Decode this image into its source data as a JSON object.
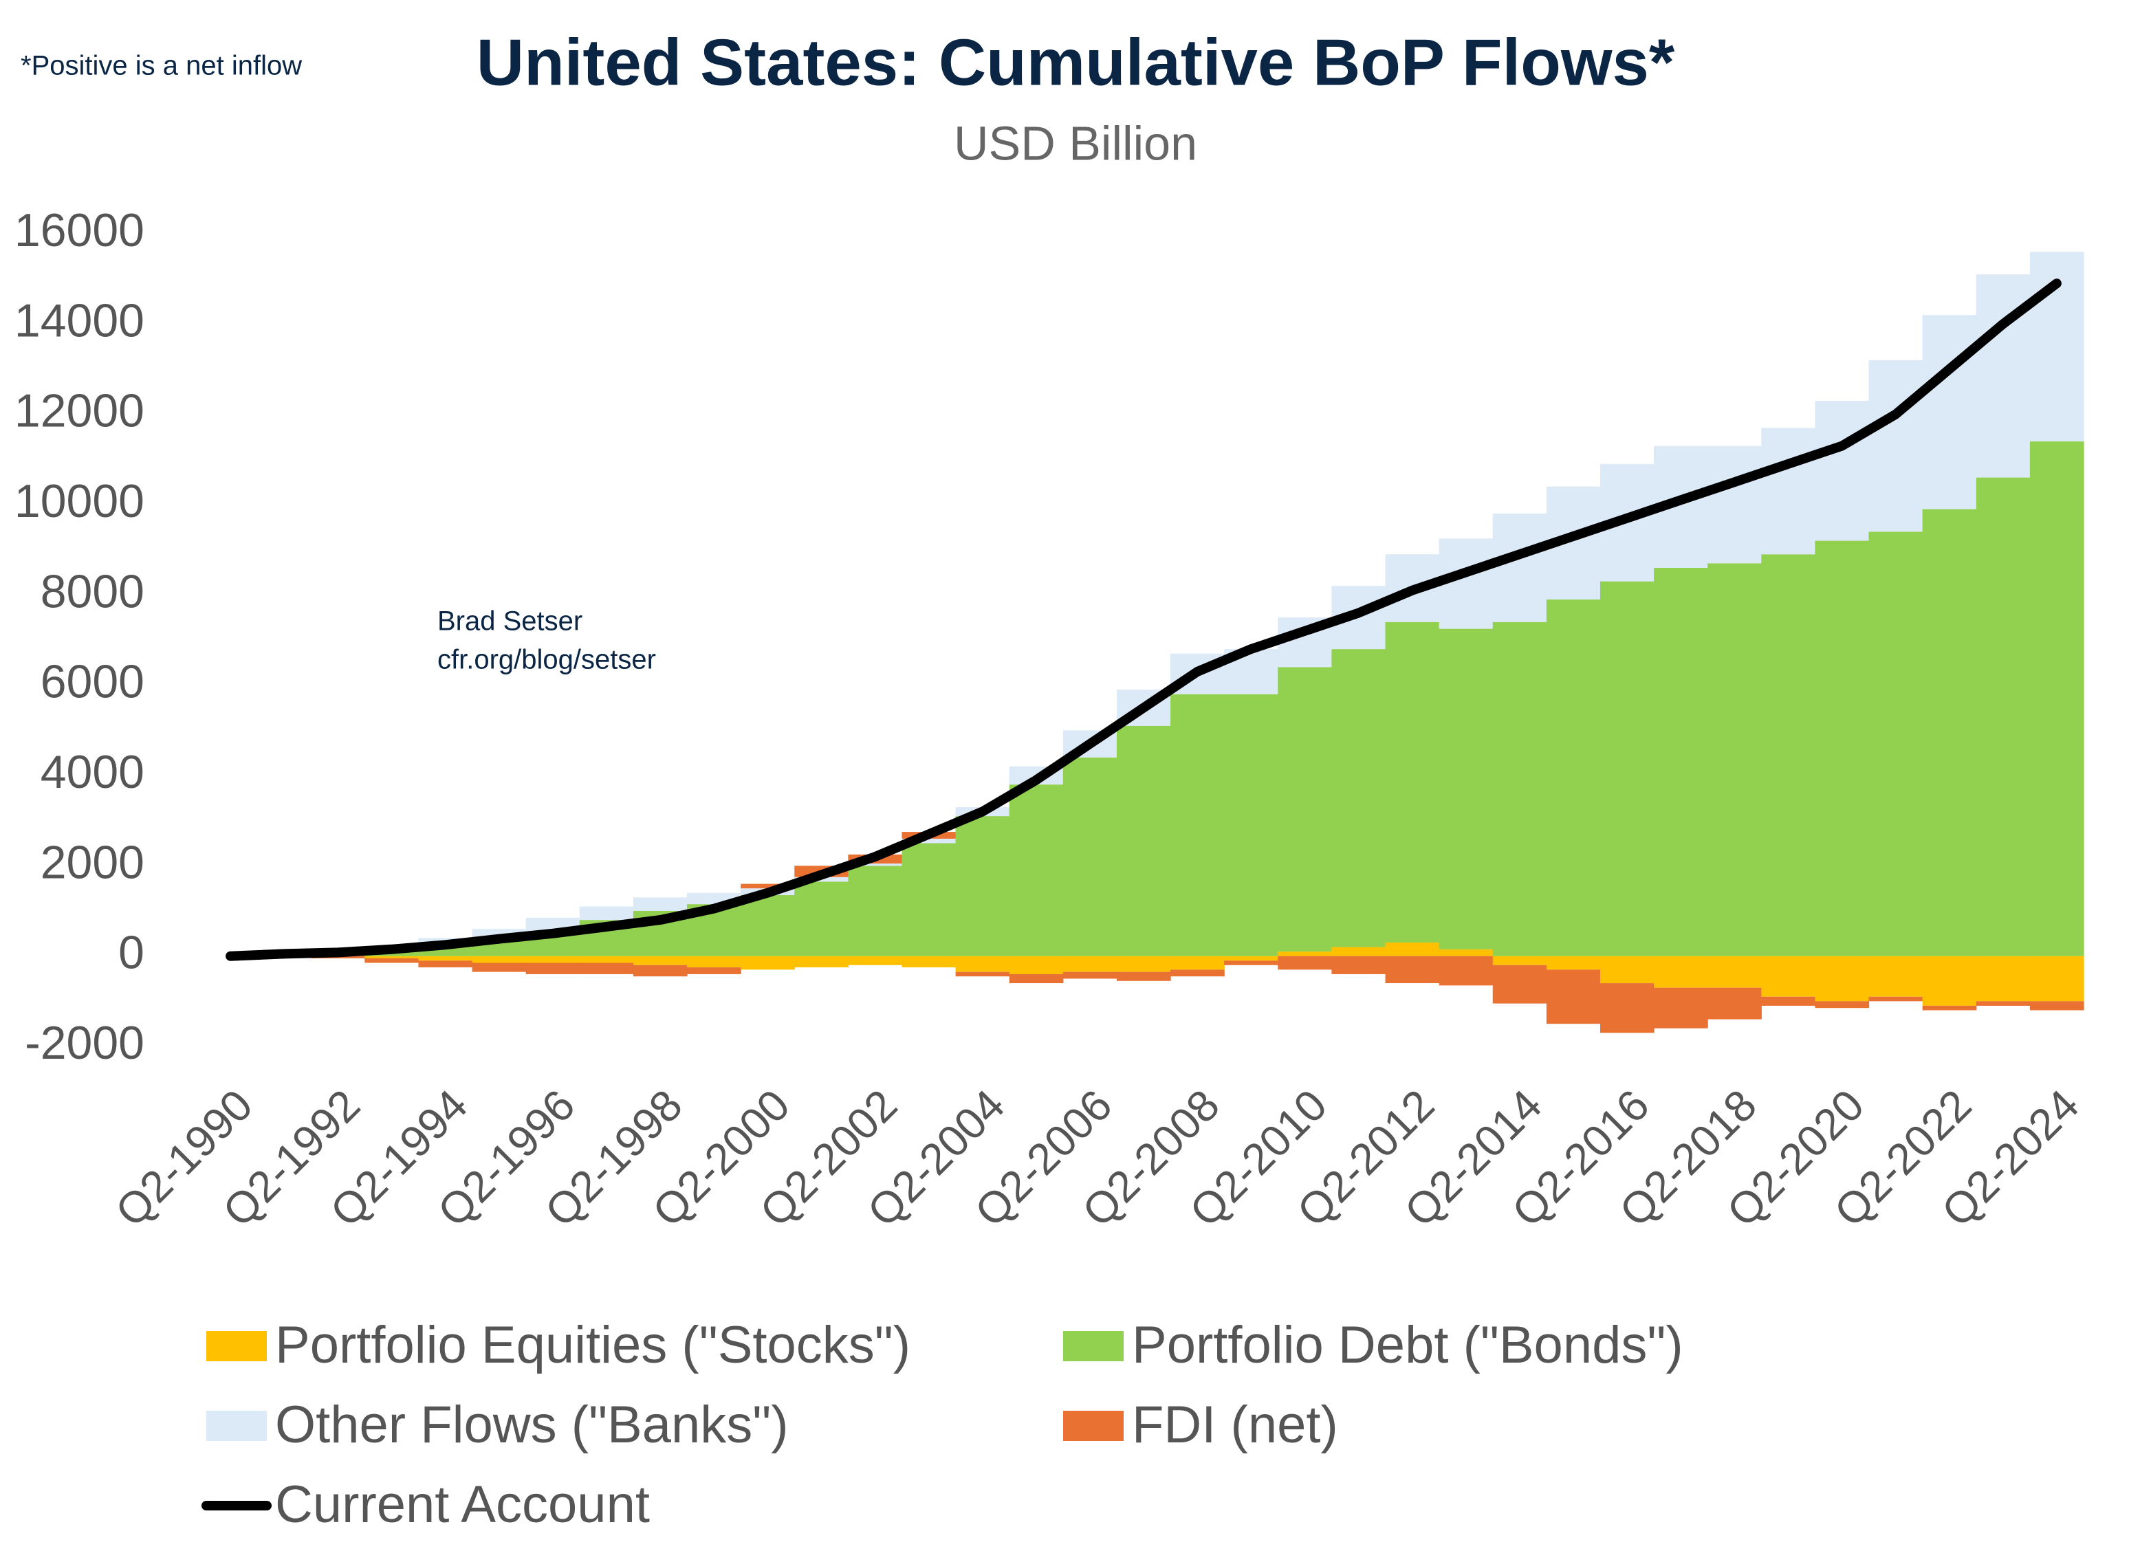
{
  "chart_data": {
    "type": "stacked_bar_line",
    "title": "United States: Cumulative BoP Flows*",
    "subtitle": "USD Billion",
    "annotations": [
      "*Positive is a net inflow",
      "Brad Setser",
      "cfr.org/blog/setser"
    ],
    "categories": [
      "Q2-1990",
      null,
      "Q2-1992",
      null,
      "Q2-1994",
      null,
      "Q2-1996",
      null,
      "Q2-1998",
      null,
      "Q2-2000",
      null,
      "Q2-2002",
      null,
      "Q2-2004",
      null,
      "Q2-2006",
      null,
      "Q2-2008",
      null,
      "Q2-2010",
      null,
      "Q2-2012",
      null,
      "Q2-2014",
      null,
      "Q2-2016",
      null,
      "Q2-2018",
      null,
      "Q2-2020",
      null,
      "Q2-2022",
      null,
      "Q2-2024"
    ],
    "series": [
      {
        "name": "Portfolio Equities (\"Stocks\")",
        "color": "#ffc000",
        "kind": "bar",
        "values": [
          0,
          0,
          0,
          -50,
          -100,
          -150,
          -150,
          -150,
          -200,
          -250,
          -300,
          -250,
          -200,
          -250,
          -350,
          -400,
          -350,
          -350,
          -300,
          -100,
          100,
          200,
          300,
          150,
          -200,
          -300,
          -600,
          -700,
          -700,
          -900,
          -1000,
          -900,
          -1100,
          -1000,
          -1000
        ]
      },
      {
        "name": "Portfolio Debt (\"Bonds\")",
        "color": "#92d050",
        "kind": "bar",
        "values": [
          0,
          20,
          50,
          100,
          200,
          350,
          550,
          800,
          1000,
          1150,
          1350,
          1650,
          2000,
          2500,
          3100,
          3800,
          4400,
          5100,
          5800,
          5800,
          6300,
          6600,
          7100,
          7100,
          7400,
          7900,
          8300,
          8600,
          8700,
          8900,
          9200,
          9400,
          9900,
          10600,
          11400
        ]
      },
      {
        "name": "Other Flows (\"Banks\")",
        "color": "#dce9f6",
        "kind": "bar",
        "values": [
          0,
          30,
          50,
          120,
          200,
          250,
          300,
          300,
          300,
          250,
          150,
          100,
          50,
          100,
          200,
          400,
          600,
          800,
          900,
          1000,
          1100,
          1400,
          1500,
          2000,
          2400,
          2500,
          2600,
          2700,
          2600,
          2800,
          3100,
          3800,
          4300,
          4500,
          4200
        ]
      },
      {
        "name": "FDI (net)",
        "color": "#e97132",
        "kind": "bar",
        "values": [
          0,
          -20,
          -50,
          -100,
          -150,
          -200,
          -250,
          -250,
          -250,
          -150,
          100,
          250,
          200,
          150,
          -100,
          -200,
          -150,
          -200,
          -150,
          -100,
          -300,
          -400,
          -600,
          -650,
          -850,
          -1200,
          -1100,
          -900,
          -700,
          -200,
          -150,
          -100,
          -100,
          -100,
          -200
        ]
      },
      {
        "name": "Current Account",
        "color": "#000000",
        "kind": "line",
        "values": [
          0,
          50,
          80,
          150,
          250,
          380,
          500,
          650,
          800,
          1050,
          1400,
          1800,
          2200,
          2700,
          3200,
          3900,
          4700,
          5500,
          6300,
          6800,
          7200,
          7600,
          8100,
          8500,
          8900,
          9300,
          9700,
          10100,
          10500,
          10900,
          11300,
          12000,
          13000,
          14000,
          14900
        ]
      }
    ],
    "ylim": [
      -2000,
      16000
    ],
    "yticks": [
      -2000,
      0,
      2000,
      4000,
      6000,
      8000,
      10000,
      12000,
      14000,
      16000
    ],
    "grid": false
  }
}
